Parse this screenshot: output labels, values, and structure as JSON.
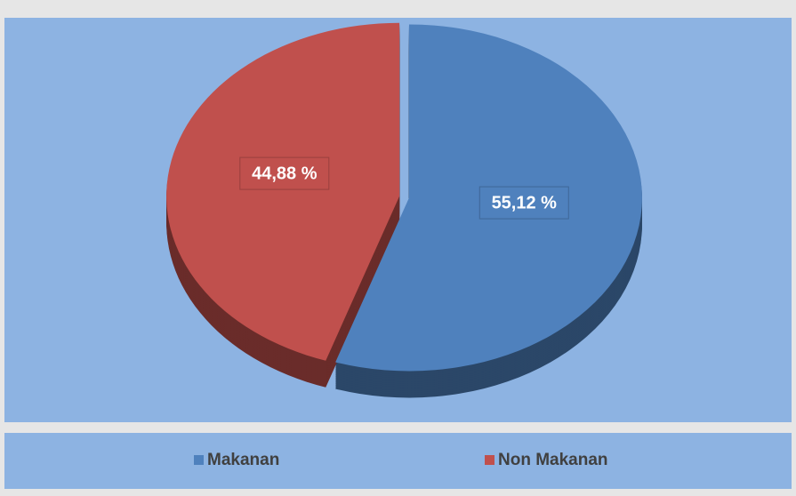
{
  "chart_data": {
    "type": "pie",
    "categories": [
      "Makanan",
      "Non Makanan"
    ],
    "values": [
      55.12,
      44.88
    ],
    "value_labels": [
      "55,12 %",
      "44,88 %"
    ],
    "colors": [
      "#4f81bd",
      "#c0504d"
    ],
    "legend": "bottom"
  }
}
